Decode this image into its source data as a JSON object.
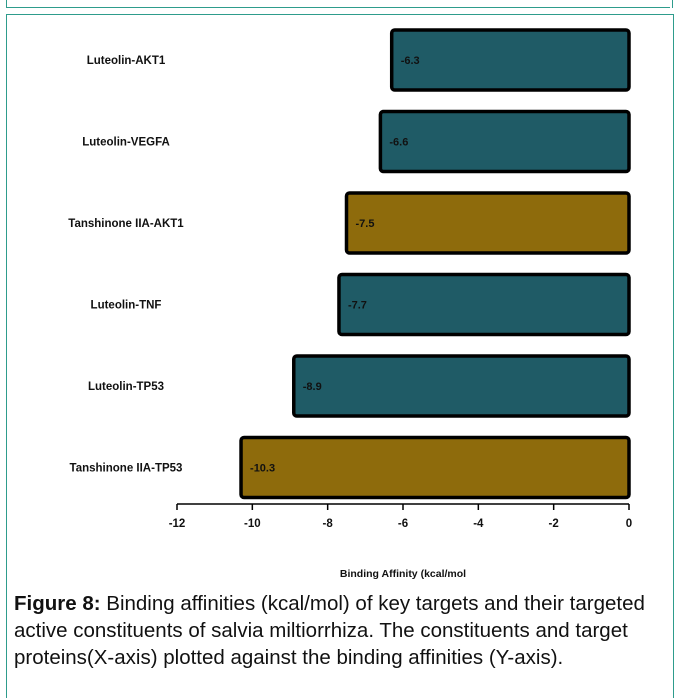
{
  "colors": {
    "frame": "#2e9c8c",
    "luteolin_bar": "#1f5b66",
    "tanshinone_bar": "#8e6b0c",
    "bar_outline": "#000000"
  },
  "chart_data": {
    "type": "bar",
    "orientation": "horizontal",
    "categories": [
      "Luteolin-AKT1",
      "Luteolin-VEGFA",
      "Tanshinone IIA-AKT1",
      "Luteolin-TNF",
      "Luteolin-TP53",
      "Tanshinone IIA-TP53"
    ],
    "values": [
      -6.3,
      -6.6,
      -7.5,
      -7.7,
      -8.9,
      -10.3
    ],
    "data_labels": [
      "-6.3",
      "-6.6",
      "-7.5",
      "-7.7",
      "-8.9",
      "-10.3"
    ],
    "bar_colors": [
      "#1f5b66",
      "#1f5b66",
      "#8e6b0c",
      "#1f5b66",
      "#1f5b66",
      "#8e6b0c"
    ],
    "xlabel": "Binding Affinity (kcal/mol",
    "ylabel": "",
    "title": "",
    "xlim": [
      -12,
      0
    ],
    "xticks": [
      -12,
      -10,
      -8,
      -6,
      -4,
      -2,
      0
    ],
    "grid": false,
    "legend": false
  },
  "caption": {
    "label": "Figure 8:",
    "text": " Binding affinities (kcal/mol) of key targets and their targeted active constituents of salvia miltiorrhiza. The constituents and target proteins(X-axis) plotted against the binding affinities (Y-axis)."
  }
}
